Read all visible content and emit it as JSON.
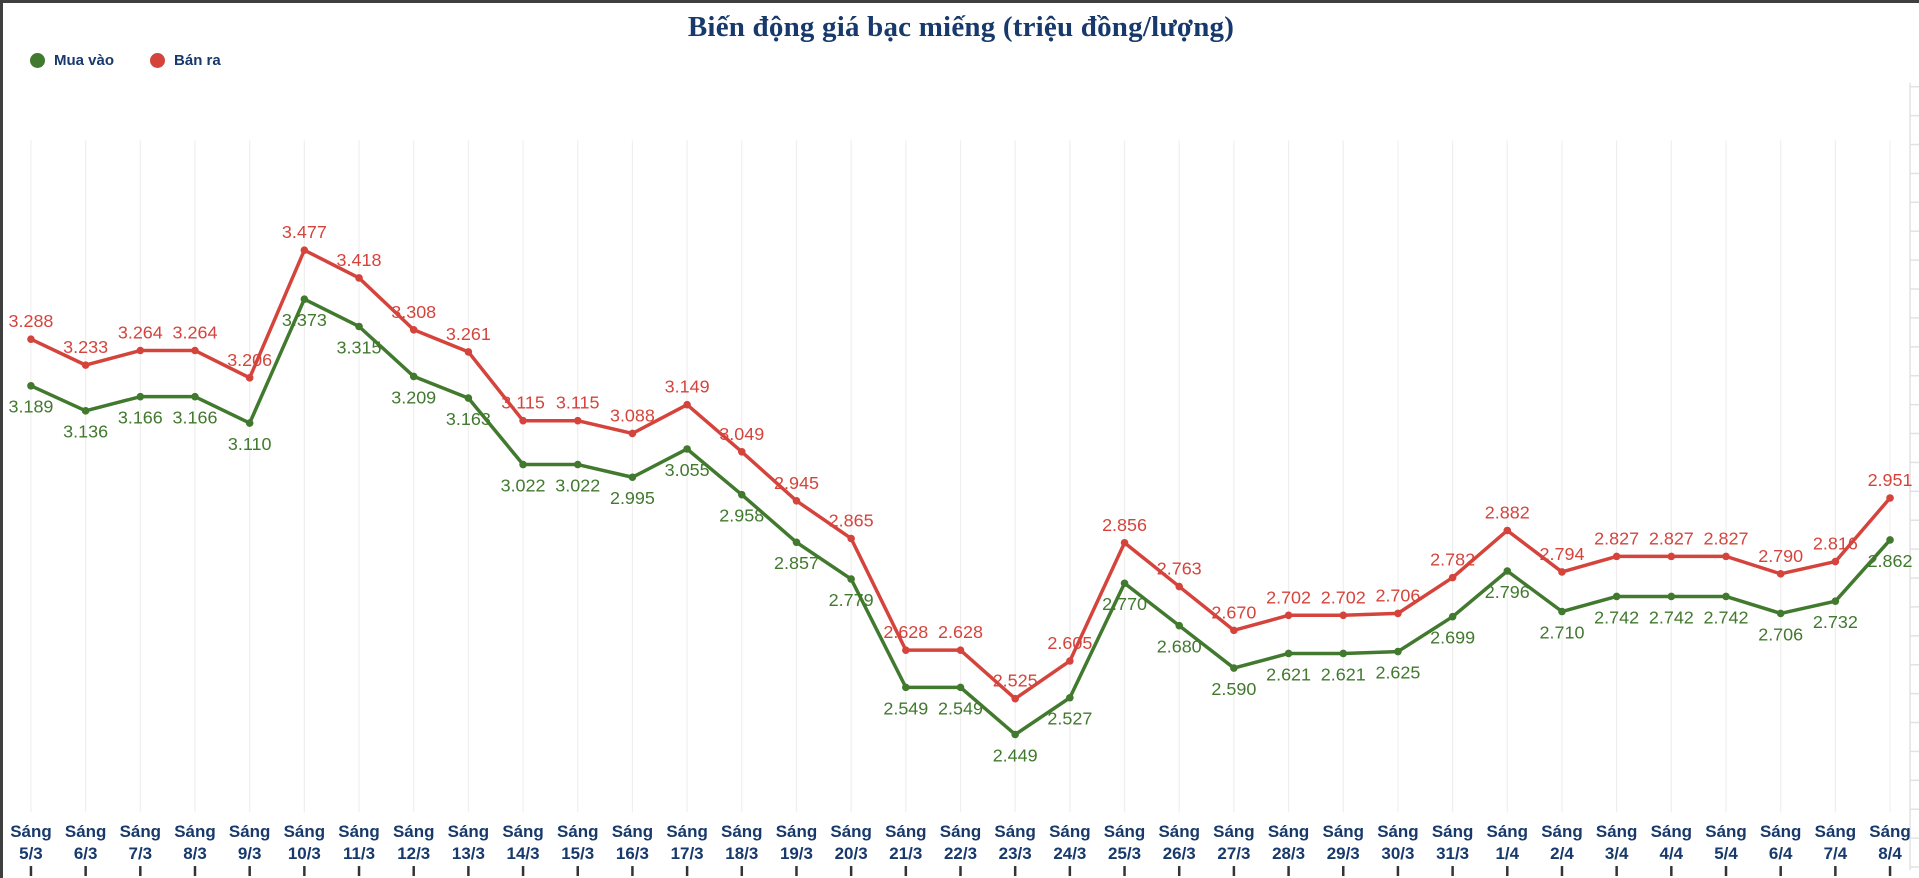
{
  "header": {
    "title": "Biến động giá bạc miếng (triệu đồng/lượng)"
  },
  "legend": {
    "items": [
      {
        "label": "Mua vào",
        "color": "#41792e"
      },
      {
        "label": "Bán ra",
        "color": "#d5443c"
      }
    ]
  },
  "colors": {
    "title_text": "#17396b",
    "axis_text": "#17396b",
    "buy_line": "#41792e",
    "sell_line": "#d5443c",
    "gridline": "#f1eeee",
    "tick": "#333333"
  },
  "chart_data": {
    "type": "line",
    "title": "Biến động giá bạc miếng (triệu đồng/lượng)",
    "x_label_prefix": "Sáng",
    "categories": [
      "5/3",
      "6/3",
      "7/3",
      "8/3",
      "9/3",
      "10/3",
      "11/3",
      "12/3",
      "13/3",
      "14/3",
      "15/3",
      "16/3",
      "17/3",
      "18/3",
      "19/3",
      "20/3",
      "21/3",
      "22/3",
      "23/3",
      "24/3",
      "25/3",
      "26/3",
      "27/3",
      "28/3",
      "29/3",
      "30/3",
      "31/3",
      "1/4",
      "2/4",
      "3/4",
      "4/4",
      "5/4",
      "6/4",
      "7/4",
      "8/4"
    ],
    "series": [
      {
        "name": "Mua vào",
        "color": "#41792e",
        "label_side": "below",
        "values": [
          3.189,
          3.136,
          3.166,
          3.166,
          3.11,
          3.373,
          3.315,
          3.209,
          3.163,
          3.022,
          3.022,
          2.995,
          3.055,
          2.958,
          2.857,
          2.779,
          2.549,
          2.549,
          2.449,
          2.527,
          2.77,
          2.68,
          2.59,
          2.621,
          2.621,
          2.625,
          2.699,
          2.796,
          2.71,
          2.742,
          2.742,
          2.742,
          2.706,
          2.732,
          2.862
        ]
      },
      {
        "name": "Bán ra",
        "color": "#d5443c",
        "label_side": "above",
        "values": [
          3.288,
          3.233,
          3.264,
          3.264,
          3.206,
          3.477,
          3.418,
          3.308,
          3.261,
          3.115,
          3.115,
          3.088,
          3.149,
          3.049,
          2.945,
          2.865,
          2.628,
          2.628,
          2.525,
          2.605,
          2.856,
          2.763,
          2.67,
          2.702,
          2.702,
          2.706,
          2.782,
          2.882,
          2.794,
          2.827,
          2.827,
          2.827,
          2.79,
          2.816,
          2.951
        ]
      }
    ],
    "value_label_decimals": 3,
    "ylim": [
      2.449,
      3.477
    ],
    "grid": "vertical-faint",
    "legend_position": "top-left"
  }
}
